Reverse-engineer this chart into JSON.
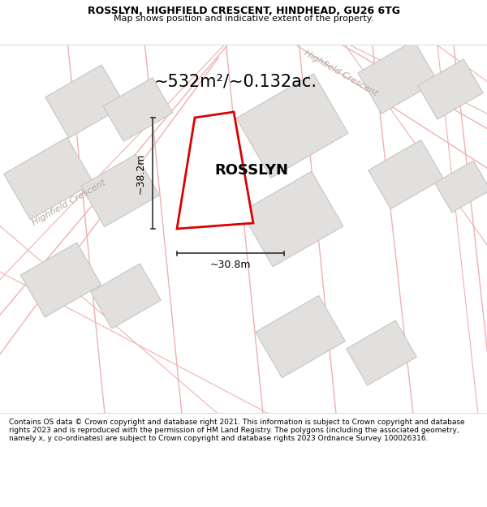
{
  "title_line1": "ROSSLYN, HIGHFIELD CRESCENT, HINDHEAD, GU26 6TG",
  "title_line2": "Map shows position and indicative extent of the property.",
  "area_text": "~532m²/~0.132ac.",
  "property_name": "ROSSLYN",
  "dim_width": "~30.8m",
  "dim_height": "~38.2m",
  "street_name_left": "Highfield Crescent",
  "street_name_top": "Highfield Crescent",
  "footer_text": "Contains OS data © Crown copyright and database right 2021. This information is subject to Crown copyright and database rights 2023 and is reproduced with the permission of HM Land Registry. The polygons (including the associated geometry, namely x, y co-ordinates) are subject to Crown copyright and database rights 2023 Ordnance Survey 100026316.",
  "map_bg": "#f7f6f4",
  "road_line_color": "#f0b0b0",
  "building_fill": "#e2e0de",
  "building_stroke": "#c8c5c2",
  "plot_outline_color": "#dd0000",
  "dim_line_color": "#333333",
  "text_color": "#000000",
  "street_label_color": "#b0a8a0",
  "title_fontsize": 9,
  "subtitle_fontsize": 8,
  "area_fontsize": 15,
  "name_fontsize": 13,
  "dim_fontsize": 9,
  "street_fontsize": 8,
  "footer_fontsize": 6.5
}
